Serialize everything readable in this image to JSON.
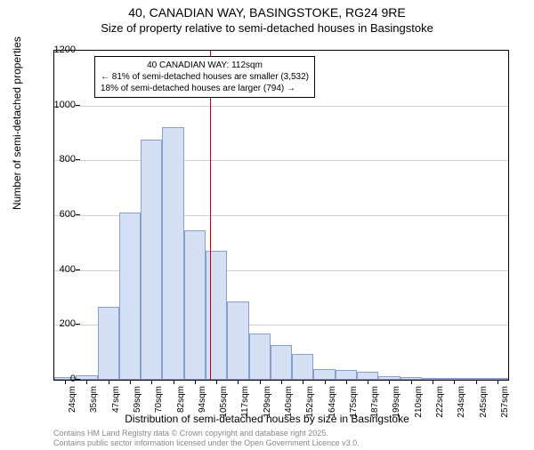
{
  "title": "40, CANADIAN WAY, BASINGSTOKE, RG24 9RE",
  "subtitle": "Size of property relative to semi-detached houses in Basingstoke",
  "chart": {
    "type": "histogram",
    "ylabel": "Number of semi-detached properties",
    "xlabel": "Distribution of semi-detached houses by size in Basingstoke",
    "ylim": [
      0,
      1200
    ],
    "ytick_step": 200,
    "yticks": [
      0,
      200,
      400,
      600,
      800,
      1000,
      1200
    ],
    "categories": [
      "24sqm",
      "35sqm",
      "47sqm",
      "59sqm",
      "70sqm",
      "82sqm",
      "94sqm",
      "105sqm",
      "117sqm",
      "129sqm",
      "140sqm",
      "152sqm",
      "164sqm",
      "175sqm",
      "187sqm",
      "199sqm",
      "210sqm",
      "222sqm",
      "234sqm",
      "245sqm",
      "257sqm"
    ],
    "values": [
      10,
      15,
      265,
      610,
      875,
      920,
      545,
      470,
      285,
      170,
      125,
      95,
      40,
      35,
      30,
      12,
      10,
      8,
      6,
      5,
      4
    ],
    "bar_fill": "#d6e0f5",
    "bar_border": "#8aa0cc",
    "grid_color": "#d0d0d0",
    "background_color": "#ffffff",
    "marker": {
      "position_index": 7.2,
      "color": "#cc0000"
    },
    "annotation": {
      "lines": [
        "40 CANADIAN WAY: 112sqm",
        "← 81% of semi-detached houses are smaller (3,532)",
        "18% of semi-detached houses are larger (794) →"
      ],
      "border": "#000000",
      "background": "#ffffff"
    },
    "title_fontsize": 14,
    "subtitle_fontsize": 13,
    "label_fontsize": 12,
    "tick_fontsize": 10
  },
  "footer": {
    "line1": "Contains HM Land Registry data © Crown copyright and database right 2025.",
    "line2": "Contains public sector information licensed under the Open Government Licence v3.0."
  }
}
